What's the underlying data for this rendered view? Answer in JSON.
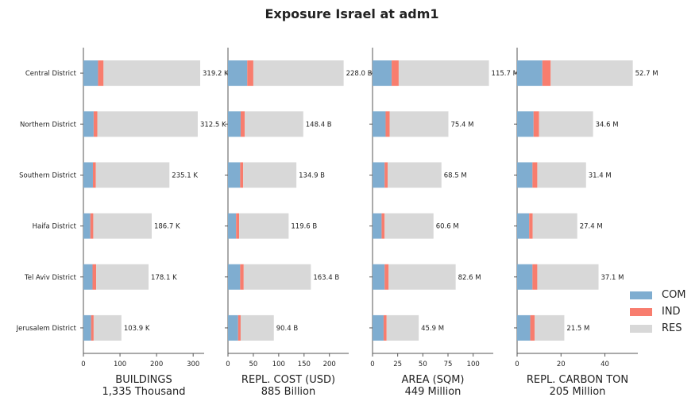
{
  "title": "Exposure Israel at adm1",
  "colors": {
    "COM": "#7fadd0",
    "IND": "#f87d6e",
    "RES": "#d8d8d8"
  },
  "legend": {
    "items": [
      "COM",
      "IND",
      "RES"
    ]
  },
  "chart_data": {
    "type": "bar",
    "orientation": "horizontal",
    "stacked": true,
    "categories": [
      "Central District",
      "Northern District",
      "Southern District",
      "Haifa District",
      "Tel Aviv District",
      "Jerusalem District"
    ],
    "panels": [
      {
        "xlabel": "BUILDINGS",
        "subtitle": "1,335 Thousand",
        "xlim": [
          0,
          330
        ],
        "xticks": [
          "0",
          "100",
          "200",
          "300"
        ],
        "series": [
          {
            "name": "COM",
            "values": [
              40,
              28,
              26,
              19,
              25,
              21
            ]
          },
          {
            "name": "IND",
            "values": [
              15,
              10,
              8,
              8,
              10,
              7
            ]
          },
          {
            "name": "RES",
            "values": [
              264.2,
              274.5,
              201.1,
              159.7,
              143.1,
              75.9
            ]
          }
        ],
        "labels": [
          "319.2 K",
          "312.5 K",
          "235.1 K",
          "186.7 K",
          "178.1 K",
          "103.9 K"
        ]
      },
      {
        "xlabel": "REPL. COST (USD)",
        "subtitle": "885 Billion",
        "xlim": [
          0,
          238
        ],
        "xticks": [
          "0",
          "50",
          "100",
          "150",
          "200"
        ],
        "series": [
          {
            "name": "COM",
            "values": [
              38,
              25,
              24,
              16,
              24,
              20
            ]
          },
          {
            "name": "IND",
            "values": [
              12,
              8,
              6,
              6,
              7,
              5
            ]
          },
          {
            "name": "RES",
            "values": [
              178,
              115.4,
              104.9,
              97.6,
              132.4,
              65.4
            ]
          }
        ],
        "labels": [
          "228.0 B",
          "148.4 B",
          "134.9 B",
          "119.6 B",
          "163.4 B",
          "90.4 B"
        ]
      },
      {
        "xlabel": "AREA (SQM)",
        "subtitle": "449 Million",
        "xlim": [
          0,
          120
        ],
        "xticks": [
          "0",
          "25",
          "50",
          "75",
          "100"
        ],
        "series": [
          {
            "name": "COM",
            "values": [
              19,
              13,
              12,
              9,
              12,
              11
            ]
          },
          {
            "name": "IND",
            "values": [
              7,
              4,
              3,
              3,
              4,
              3
            ]
          },
          {
            "name": "RES",
            "values": [
              89.7,
              58.4,
              53.5,
              48.6,
              66.6,
              31.9
            ]
          }
        ],
        "labels": [
          "115.7 M",
          "75.4 M",
          "68.5 M",
          "60.6 M",
          "82.6 M",
          "45.9 M"
        ]
      },
      {
        "xlabel": "REPL. CARBON TON",
        "subtitle": "205 Million",
        "xlim": [
          0,
          55
        ],
        "xticks": [
          "0",
          "20",
          "40"
        ],
        "series": [
          {
            "name": "COM",
            "values": [
              11.5,
              7.5,
              7,
              5.5,
              7,
              6
            ]
          },
          {
            "name": "IND",
            "values": [
              3.8,
              2.5,
              2.2,
              1.6,
              2.2,
              2
            ]
          },
          {
            "name": "RES",
            "values": [
              37.4,
              24.6,
              22.2,
              20.3,
              27.9,
              13.5
            ]
          }
        ],
        "labels": [
          "52.7 M",
          "34.6 M",
          "31.4 M",
          "27.4 M",
          "37.1 M",
          "21.5 M"
        ]
      }
    ]
  }
}
